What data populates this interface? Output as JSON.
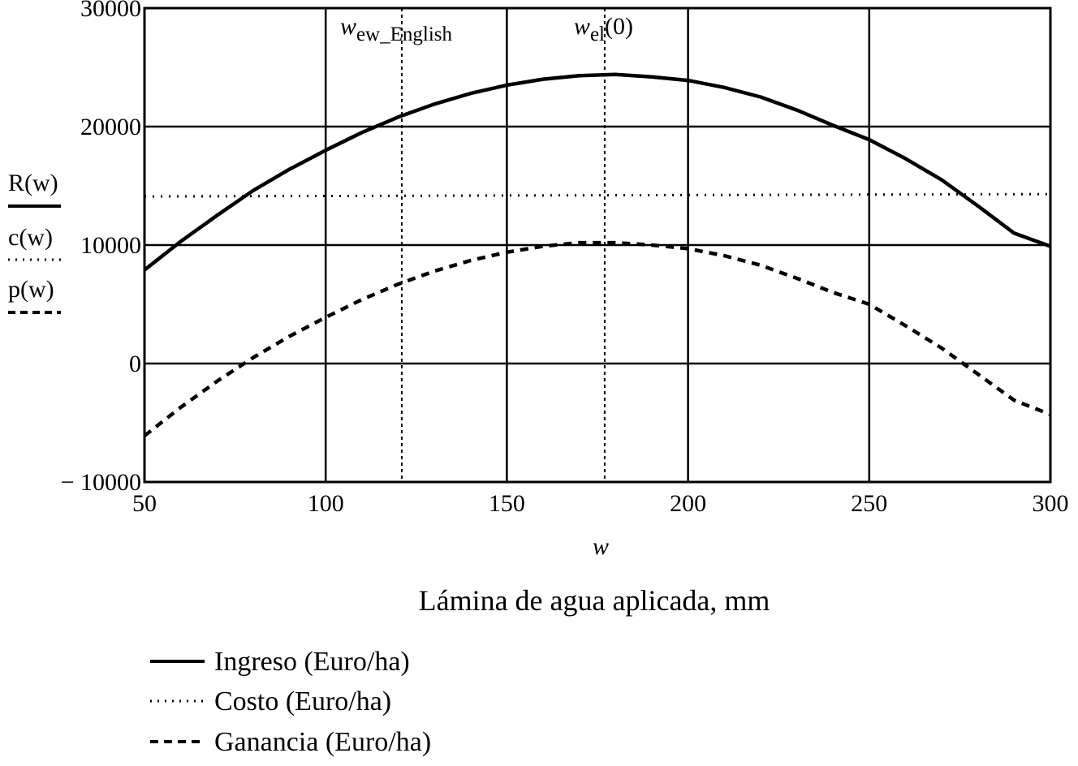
{
  "chart_data": {
    "type": "line",
    "xlabel": "w",
    "caption": "Lámina de agua aplicada, mm",
    "xlim": [
      50,
      300
    ],
    "ylim": [
      -10000,
      30000
    ],
    "x_ticks": [
      "50",
      "100",
      "150",
      "200",
      "250",
      "300"
    ],
    "y_ticks": [
      "30000",
      "20000",
      "10000",
      "0",
      "− 10000"
    ],
    "grid": true,
    "y_axis_labels": [
      "R(w)",
      "c(w)",
      "p(w)"
    ],
    "series": [
      {
        "name": "Ingreso (Euro/ha)",
        "style": "solid",
        "x": [
          50,
          60,
          70,
          80,
          90,
          100,
          110,
          120,
          130,
          140,
          150,
          160,
          170,
          180,
          190,
          200,
          210,
          220,
          230,
          240,
          250,
          260,
          270,
          280,
          290,
          300
        ],
        "y": [
          7900,
          10300,
          12500,
          14600,
          16400,
          18000,
          19500,
          20800,
          21900,
          22800,
          23500,
          24000,
          24300,
          24400,
          24200,
          23900,
          23300,
          22500,
          21400,
          20100,
          18900,
          17300,
          15500,
          13300,
          11000,
          9900
        ]
      },
      {
        "name": "Costo (Euro/ha)",
        "style": "dotted",
        "x": [
          50,
          300
        ],
        "y": [
          14100,
          14300
        ]
      },
      {
        "name": "Ganancia (Euro/ha)",
        "style": "dashed",
        "x": [
          50,
          60,
          70,
          80,
          90,
          100,
          110,
          120,
          130,
          140,
          150,
          160,
          170,
          180,
          190,
          200,
          210,
          220,
          230,
          240,
          250,
          260,
          270,
          280,
          290,
          300
        ],
        "y": [
          -6100,
          -3700,
          -1500,
          500,
          2300,
          3900,
          5400,
          6700,
          7800,
          8700,
          9400,
          9900,
          10200,
          10200,
          10000,
          9700,
          9100,
          8300,
          7200,
          6000,
          5000,
          3200,
          1300,
          -900,
          -3100,
          -4300
        ]
      }
    ],
    "markers": [
      {
        "label": "w",
        "subscript": "ew_English",
        "x": 121
      },
      {
        "label": "w",
        "subscript": "el",
        "suffix": "(0)",
        "x": 177
      }
    ]
  },
  "legend": {
    "items": [
      {
        "label": "Ingreso (Euro/ha)",
        "style": "solid"
      },
      {
        "label": "Costo (Euro/ha)",
        "style": "dotted"
      },
      {
        "label": "Ganancia (Euro/ha)",
        "style": "dashed"
      }
    ]
  }
}
